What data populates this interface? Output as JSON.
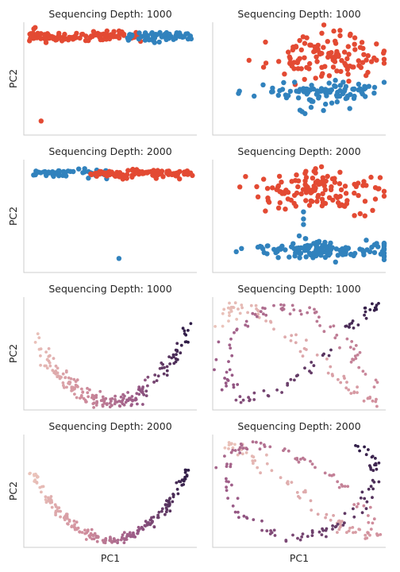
{
  "chart_data": [
    {
      "type": "scatter",
      "title": "Sequencing Depth: 1000",
      "ylabel": "PC2",
      "xlabel": "",
      "colormap": "categorical",
      "grid": false,
      "series": [
        {
          "color": "#e34a33"
        },
        {
          "color": "#3182bd"
        }
      ],
      "generator": {
        "shape": "band",
        "seed": 11,
        "n": [
          110,
          60
        ],
        "ylim": [
          -14,
          2
        ],
        "xlim": [
          0,
          10
        ],
        "bands": [
          [
            0.2,
            6.8,
            0.0,
            0.35
          ],
          [
            6.0,
            9.7,
            0.0,
            0.35
          ]
        ],
        "outliers": [
          [
            1.0,
            -12.0
          ]
        ]
      }
    },
    {
      "type": "scatter",
      "title": "Sequencing Depth: 1000",
      "ylabel": "",
      "xlabel": "",
      "colormap": "categorical",
      "grid": false,
      "series": [
        {
          "color": "#e34a33"
        },
        {
          "color": "#3182bd"
        }
      ],
      "generator": {
        "shape": "clusters",
        "seed": 23,
        "n": [
          120,
          95
        ],
        "ylim": [
          -4,
          4
        ],
        "xlim": [
          -4,
          4
        ],
        "clusters": [
          [
            1.2,
            1.5,
            1.3,
            0.75
          ],
          [
            1.0,
            -1.0,
            1.5,
            0.5
          ]
        ]
      }
    },
    {
      "type": "scatter",
      "title": "Sequencing Depth: 2000",
      "ylabel": "PC2",
      "xlabel": "",
      "colormap": "categorical",
      "grid": false,
      "series": [
        {
          "color": "#3182bd"
        },
        {
          "color": "#e34a33"
        }
      ],
      "generator": {
        "shape": "band",
        "seed": 37,
        "n": [
          55,
          110
        ],
        "ylim": [
          -14,
          2
        ],
        "xlim": [
          0,
          10
        ],
        "bands": [
          [
            0.4,
            4.8,
            0.0,
            0.3
          ],
          [
            3.8,
            9.8,
            0.0,
            0.3
          ]
        ],
        "outliers": [
          [
            5.5,
            -12.0
          ]
        ]
      }
    },
    {
      "type": "scatter",
      "title": "Sequencing Depth: 2000",
      "ylabel": "",
      "xlabel": "",
      "colormap": "categorical",
      "grid": false,
      "series": [
        {
          "color": "#e34a33"
        },
        {
          "color": "#3182bd"
        }
      ],
      "generator": {
        "shape": "clusters",
        "seed": 41,
        "n": [
          130,
          140
        ],
        "ylim": [
          -4,
          4
        ],
        "xlim": [
          -4,
          4
        ],
        "clusters": [
          [
            1.0,
            1.8,
            1.6,
            0.7
          ],
          [
            1.2,
            -2.4,
            1.7,
            0.3
          ]
        ],
        "extra": [
          [
            0.2,
            -0.2
          ],
          [
            0.2,
            -0.6
          ],
          [
            0.2,
            0.3
          ],
          [
            0.0,
            -1.4
          ],
          [
            0.3,
            -1.6
          ]
        ]
      }
    },
    {
      "type": "scatter",
      "title": "Sequencing Depth: 1000",
      "ylabel": "PC2",
      "xlabel": "",
      "colormap": "pseudotime",
      "grid": false,
      "colors": [
        "#ebc5bb",
        "#d08d9c",
        "#9a5a87",
        "#2f1d47"
      ],
      "generator": {
        "shape": "parabola",
        "seed": 53,
        "n": 200,
        "noise": 0.22,
        "ylim": [
          -1.3,
          3.2
        ],
        "xlim": [
          -1.1,
          1.1
        ]
      }
    },
    {
      "type": "scatter",
      "title": "Sequencing Depth: 1000",
      "ylabel": "",
      "xlabel": "",
      "colormap": "pseudotime",
      "grid": false,
      "colors": [
        "#ebc5bb",
        "#d08d9c",
        "#9a5a87",
        "#2f1d47"
      ],
      "generator": {
        "shape": "loops",
        "seed": 61,
        "n": 200,
        "noise": 0.06,
        "ylim": [
          -1.15,
          1.15
        ],
        "xlim": [
          -1.1,
          1.1
        ]
      }
    },
    {
      "type": "scatter",
      "title": "Sequencing Depth: 2000",
      "ylabel": "PC2",
      "xlabel": "PC1",
      "colormap": "pseudotime",
      "grid": false,
      "colors": [
        "#ebc5bb",
        "#d08d9c",
        "#9a5a87",
        "#2f1d47"
      ],
      "generator": {
        "shape": "parabola",
        "seed": 71,
        "n": 220,
        "noise": 0.12,
        "ylim": [
          -1.3,
          3.2
        ],
        "xlim": [
          -1.1,
          1.1
        ]
      }
    },
    {
      "type": "scatter",
      "title": "Sequencing Depth: 2000",
      "ylabel": "",
      "xlabel": "PC1",
      "colormap": "pseudotime",
      "grid": false,
      "colors": [
        "#ebc5bb",
        "#d08d9c",
        "#9a5a87",
        "#2f1d47"
      ],
      "generator": {
        "shape": "loops2",
        "seed": 83,
        "n": 210,
        "noise": 0.05,
        "ylim": [
          -1.15,
          1.15
        ],
        "xlim": [
          -1.1,
          1.1
        ]
      }
    }
  ]
}
